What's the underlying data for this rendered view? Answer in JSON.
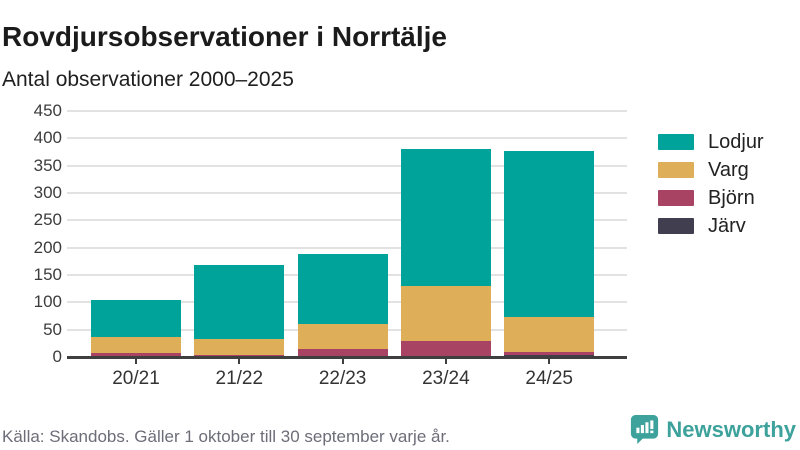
{
  "header": {
    "title": "Rovdjursobservationer i Norrtälje",
    "subtitle": "Antal observationer 2000–2025"
  },
  "chart_data": {
    "type": "bar",
    "stacked": true,
    "categories": [
      "20/21",
      "21/22",
      "22/23",
      "23/24",
      "24/25"
    ],
    "series": [
      {
        "name": "Lodjur",
        "color": "#00a39a",
        "values": [
          68,
          135,
          128,
          250,
          304
        ]
      },
      {
        "name": "Varg",
        "color": "#dfae58",
        "values": [
          30,
          30,
          45,
          101,
          64
        ]
      },
      {
        "name": "Björn",
        "color": "#a84364",
        "values": [
          7,
          3,
          15,
          29,
          5
        ]
      },
      {
        "name": "Järv",
        "color": "#413e50",
        "values": [
          0,
          0,
          0,
          0,
          4
        ]
      }
    ],
    "stack_order_bottom_up": [
      "Järv",
      "Björn",
      "Varg",
      "Lodjur"
    ],
    "totals": [
      105,
      168,
      188,
      380,
      377
    ],
    "title": "Rovdjursobservationer i Norrtälje",
    "subtitle": "Antal observationer 2000–2025",
    "xlabel": "",
    "ylabel": "",
    "ylim": [
      0,
      450
    ],
    "yticks": [
      0,
      50,
      100,
      150,
      200,
      250,
      300,
      350,
      400,
      450
    ],
    "grid": true,
    "legend_position": "right"
  },
  "footer": {
    "source": "Källa: Skandobs. Gäller 1 oktober till 30 september varje år.",
    "brand": "Newsworthy"
  },
  "colors": {
    "lodjur": "#00a39a",
    "varg": "#dfae58",
    "bjorn": "#a84364",
    "jarv": "#413e50",
    "axis": "#3f3f3f",
    "gridline": "#e2e2e2",
    "source_text": "#6d6d78",
    "brand_teal": "#3da29b"
  }
}
